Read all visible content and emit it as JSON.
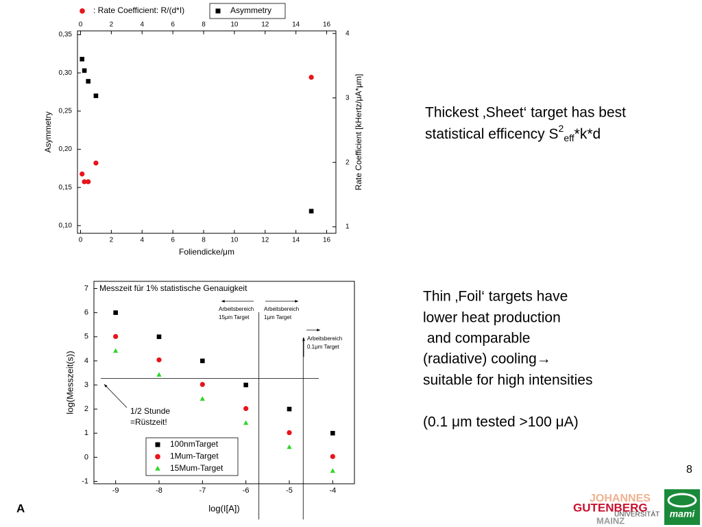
{
  "chart_data": [
    {
      "type": "scatter",
      "x_label": "Foliendicke/μm",
      "y_label": "Asymmetry",
      "y2_label": "Rate Coefficient [kHertz/μA*μm]",
      "x": [
        0.1,
        0.25,
        0.5,
        1,
        15
      ],
      "series": [
        {
          "name": ": Rate Coefficient: R/(d*I)",
          "color": "#e8141b",
          "marker": "circle",
          "axis": "y2",
          "values": [
            1.82,
            1.7,
            1.7,
            1.99,
            3.32
          ]
        },
        {
          "name": "Asymmetry",
          "color": "#000000",
          "marker": "square",
          "values": [
            0.318,
            0.303,
            0.289,
            0.27,
            0.119
          ]
        }
      ],
      "xlim": [
        -0.2,
        16.6
      ],
      "xticks": [
        0,
        2,
        4,
        6,
        8,
        10,
        12,
        14,
        16
      ],
      "ylim": [
        0.09,
        0.355
      ],
      "yticks": [
        {
          "value": 0.1,
          "label": "0,10"
        },
        {
          "value": 0.15,
          "label": "0,15"
        },
        {
          "value": 0.2,
          "label": "0,20"
        },
        {
          "value": 0.25,
          "label": "0,25"
        },
        {
          "value": 0.3,
          "label": "0,30"
        },
        {
          "value": 0.35,
          "label": "0,35"
        }
      ],
      "y2lim": [
        0.9,
        4.04
      ],
      "y2ticks": [
        1,
        2,
        3,
        4
      ],
      "legend": "top"
    },
    {
      "type": "scatter",
      "title": "Messzeit für 1% statistische Genauigkeit",
      "x_label": "log(I[A])",
      "y_label": "log(Messzeit(s))",
      "x": [
        -9,
        -8,
        -7,
        -6,
        -5,
        -4
      ],
      "series": [
        {
          "name": "100nmTarget",
          "color": "#000000",
          "marker": "square",
          "values": [
            6,
            5,
            4,
            3,
            2,
            1
          ]
        },
        {
          "name": "1Mum-Target",
          "color": "#e8141b",
          "marker": "circle",
          "values": [
            5.01,
            4.04,
            3.02,
            2.02,
            1.02,
            0.03
          ]
        },
        {
          "name": "15Mum-Target",
          "color": "#2fd62a",
          "marker": "triangle",
          "values": [
            4.41,
            3.42,
            2.42,
            1.42,
            0.42,
            -0.57
          ]
        }
      ],
      "xlim": [
        -9.5,
        -3.5
      ],
      "xticks": [
        -9,
        -8,
        -7,
        -6,
        -5,
        -4
      ],
      "ylim": [
        -1.1,
        7.3
      ],
      "yticks": [
        -1,
        0,
        1,
        2,
        3,
        4,
        5,
        6,
        7
      ],
      "hlines": [
        3.27
      ],
      "vlines": [
        -5.7,
        -4.68
      ],
      "annotations": [
        {
          "lines": [
            "Arbeitsbereich",
            "15μm Target"
          ]
        },
        {
          "lines": [
            "Arbeitsbereich",
            "1μm Target"
          ]
        },
        {
          "lines": [
            "Arbeitsbereich",
            "0.1μm Target"
          ]
        },
        {
          "lines": [
            "1/2 Stunde",
            "=Rüstzeit!"
          ]
        }
      ],
      "legend": "lower left"
    }
  ],
  "text": {
    "block1": {
      "line1": "Thickest ‚Sheet‘ target has best",
      "line2": "statistical efficency S",
      "sup": "2",
      "sub": "eff",
      "tail": "*k*d"
    },
    "block2": [
      "Thin ‚Foil‘ targets have",
      "lower heat production",
      " and comparable",
      "(radiative) cooling→",
      "suitable for high intensities",
      "(0.1 μm tested >100 μA)"
    ],
    "page_number": "8",
    "corner_letter": "A",
    "logo": [
      "JOHANNES",
      "GUTENBERG",
      "UNIVERSITÄT",
      "MAINZ",
      "mami"
    ]
  }
}
